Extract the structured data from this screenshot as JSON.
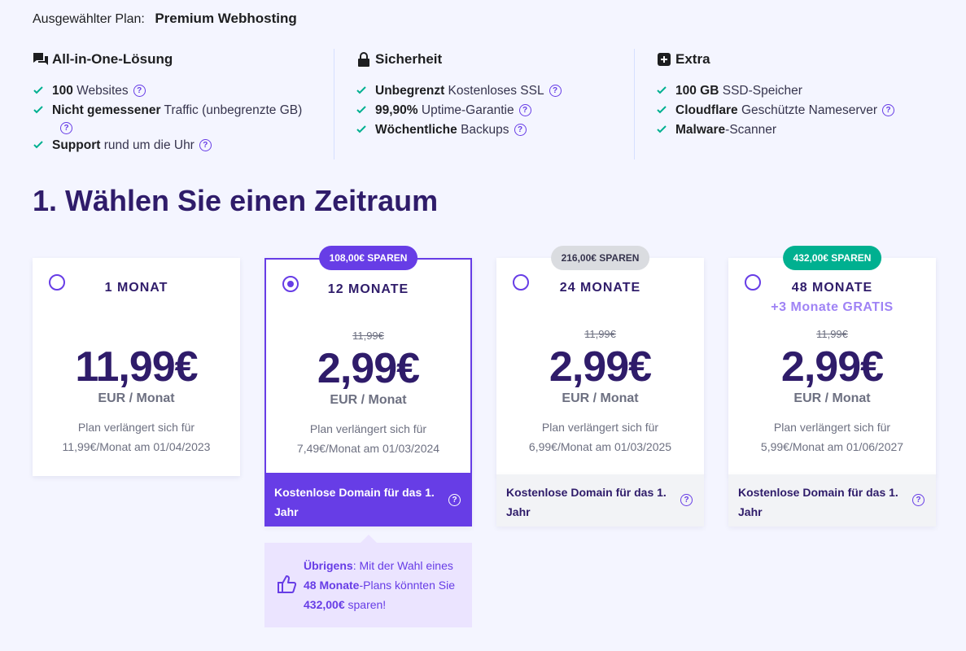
{
  "selected_plan": {
    "label": "Ausgewählter Plan:",
    "name": "Premium Webhosting"
  },
  "features": {
    "all_in_one": {
      "title": "All-in-One-Lösung",
      "icon": "chat-bubbles-icon",
      "items": [
        {
          "bold": "100",
          "rest": " Websites",
          "help": true
        },
        {
          "bold": "Nicht gemessener",
          "rest": " Traffic (unbegrenzte GB)",
          "help": true
        },
        {
          "bold": "Support",
          "rest": " rund um die Uhr",
          "help": true
        }
      ]
    },
    "security": {
      "title": "Sicherheit",
      "icon": "lock-icon",
      "items": [
        {
          "bold": "Unbegrenzt",
          "rest": " Kostenloses SSL",
          "help": true
        },
        {
          "bold": "99,90%",
          "rest": " Uptime-Garantie",
          "help": true
        },
        {
          "bold": "Wöchentliche",
          "rest": " Backups",
          "help": true
        }
      ]
    },
    "extra": {
      "title": "Extra",
      "icon": "plus-box-icon",
      "items": [
        {
          "bold": "100 GB",
          "rest": " SSD-Speicher",
          "help": false
        },
        {
          "bold": "Cloudflare",
          "rest": " Geschützte Nameserver",
          "help": true
        },
        {
          "bold": "Malware",
          "rest": "-Scanner",
          "help": false
        }
      ]
    }
  },
  "section_title": "1. Wählen Sie einen Zeitraum",
  "periods": [
    {
      "label": "1 MONAT",
      "badge": "",
      "bonus": "",
      "old_price": "",
      "price": "11,99€",
      "unit": "EUR / Monat",
      "renew_line1": "Plan verlängert sich für",
      "renew_line2": "11,99€/Monat am 01/04/2023",
      "selected": false
    },
    {
      "label": "12 MONATE",
      "badge": "108,00€ SPAREN",
      "bonus": "",
      "old_price": "11,99€",
      "price": "2,99€",
      "unit": "EUR / Monat",
      "renew_line1": "Plan verlängert sich für",
      "renew_line2": "7,49€/Monat am 01/03/2024",
      "selected": true,
      "domain": "Kostenlose Domain für das 1. Jahr"
    },
    {
      "label": "24 MONATE",
      "badge": "216,00€ SPAREN",
      "bonus": "",
      "old_price": "11,99€",
      "price": "2,99€",
      "unit": "EUR / Monat",
      "renew_line1": "Plan verlängert sich für",
      "renew_line2": "6,99€/Monat am 01/03/2025",
      "selected": false,
      "domain": "Kostenlose Domain für das 1. Jahr"
    },
    {
      "label": "48 MONATE",
      "badge": "432,00€ SPAREN",
      "bonus": "+3 Monate GRATIS",
      "old_price": "11,99€",
      "price": "2,99€",
      "unit": "EUR / Monat",
      "renew_line1": "Plan verlängert sich für",
      "renew_line2": "5,99€/Monat am 01/06/2027",
      "selected": false,
      "domain": "Kostenlose Domain für das 1. Jahr"
    }
  ],
  "tip": {
    "lead": "Übrigens",
    "t1": ": Mit der Wahl eines ",
    "plan": "48 Monate",
    "t2": "-Plans könnten Sie ",
    "amount": "432,00€",
    "t3": " sparen!"
  },
  "colors": {
    "accent": "#673de6",
    "heading": "#2f1c6a",
    "check": "#00b090",
    "savings_grey": "#dadce0"
  }
}
